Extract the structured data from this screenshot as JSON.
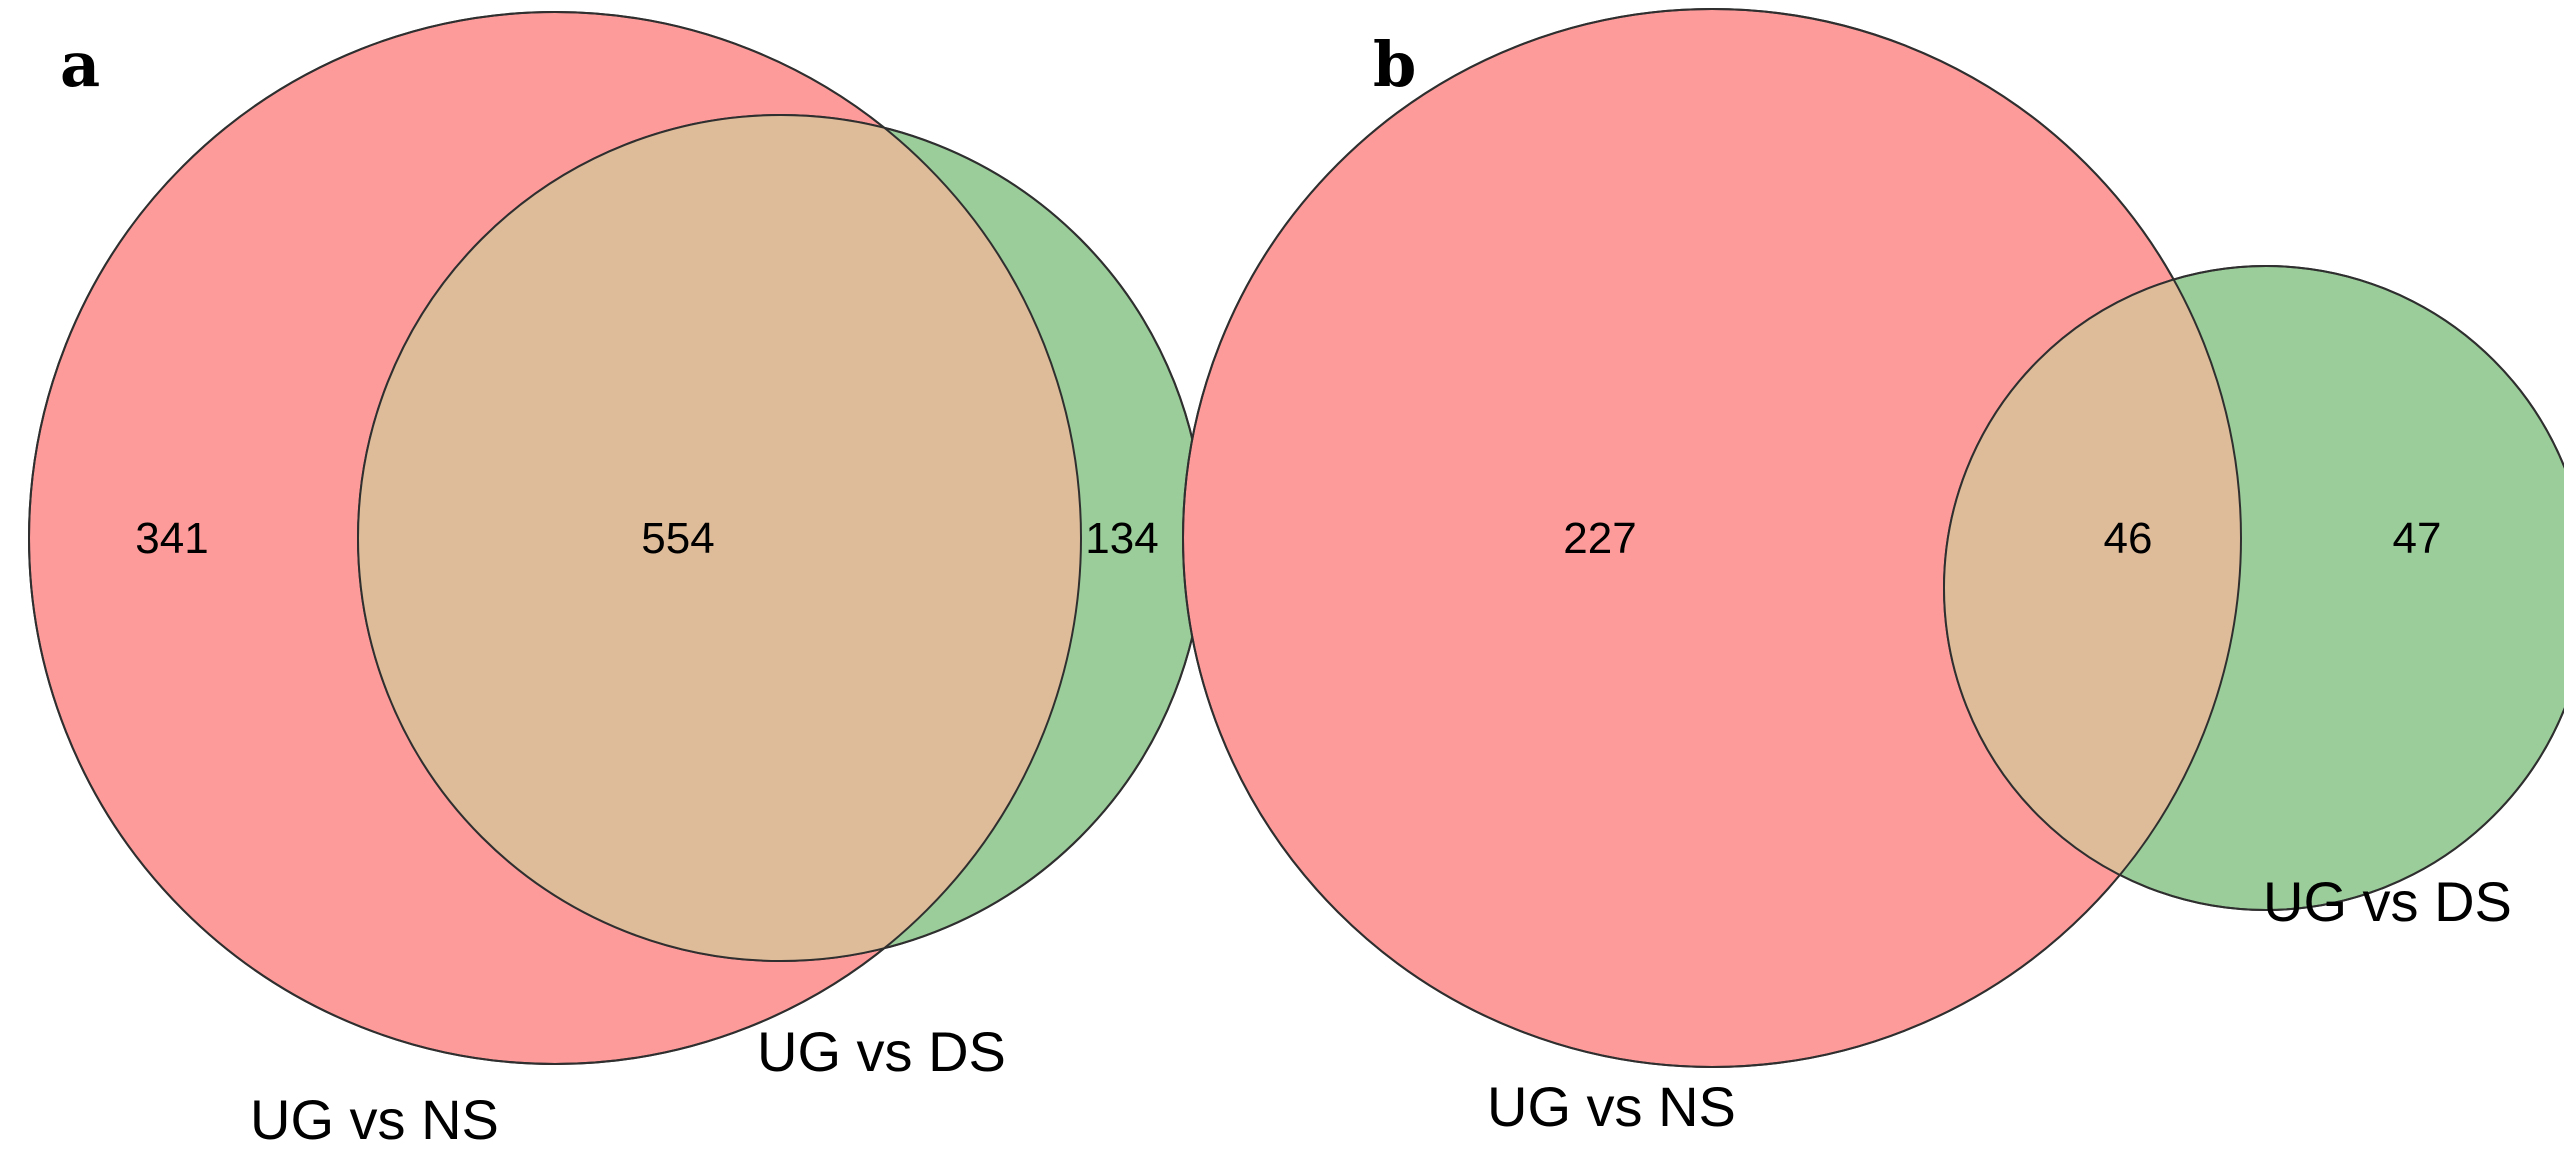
{
  "colors": {
    "set_a": "#FD9A9A",
    "set_b": "#9ACD9A",
    "overlap": "#DEBC9A",
    "outline": "#2F2F2F"
  },
  "panels": [
    {
      "letter": "a",
      "sets": [
        {
          "name": "UG vs NS",
          "color_key": "set_a"
        },
        {
          "name": "UG vs DS",
          "color_key": "set_b"
        }
      ],
      "counts": {
        "only_ug_vs_ns": "341",
        "both": "554",
        "only_ug_vs_ds": "134"
      }
    },
    {
      "letter": "b",
      "sets": [
        {
          "name": "UG vs NS",
          "color_key": "set_a"
        },
        {
          "name": "UG vs DS",
          "color_key": "set_b"
        }
      ],
      "counts": {
        "only_ug_vs_ns": "227",
        "both": "46",
        "only_ug_vs_ds": "47"
      }
    }
  ]
}
